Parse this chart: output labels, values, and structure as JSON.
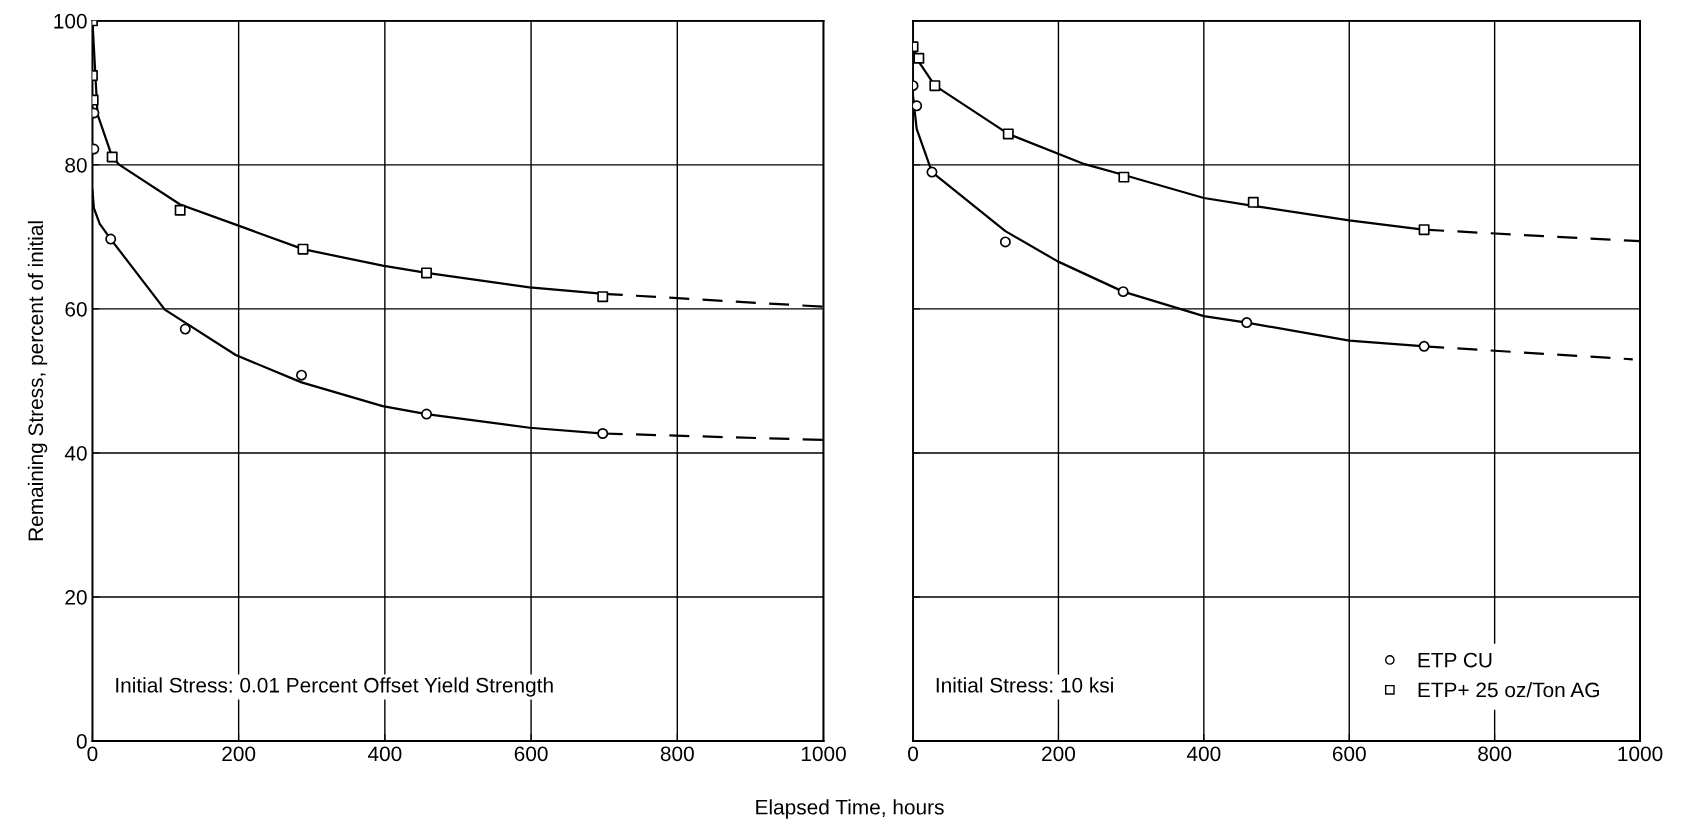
{
  "chart_data": [
    {
      "type": "scatter",
      "ylabel": "Remaining Stress, percent of initial",
      "xlabel": "Elapsed Time, hours",
      "xlim": [
        0,
        1000
      ],
      "ylim": [
        0,
        100
      ],
      "xticks": [
        0,
        200,
        400,
        600,
        800,
        1000
      ],
      "yticks": [
        0,
        20,
        40,
        60,
        80,
        100
      ],
      "grid": true,
      "annotations": [
        "Initial Stress: 0.01 Percent Offset Yield Strength"
      ],
      "series": [
        {
          "type": "line",
          "color": "#000000",
          "line_style": "solid",
          "marker": "none",
          "x": [
            0,
            7,
            27,
            37,
            120,
            196,
            288,
            397,
            457,
            598,
            698
          ],
          "values": [
            100,
            87,
            81.1,
            80,
            74.5,
            71.7,
            68.3,
            66,
            65,
            63,
            62.1
          ]
        },
        {
          "type": "line",
          "color": "#000000",
          "line_style": "dashed",
          "marker": "none",
          "x": [
            698,
            1000
          ],
          "values": [
            62.1,
            60.3
          ]
        },
        {
          "type": "line",
          "color": "#000000",
          "line_style": "solid",
          "marker": "none",
          "x": [
            0,
            2,
            10,
            25,
            99,
            196,
            286,
            397,
            457,
            598,
            698
          ],
          "values": [
            76.5,
            74,
            71.8,
            69.7,
            59.9,
            53.6,
            49.8,
            46.5,
            45.4,
            43.5,
            42.7
          ]
        },
        {
          "type": "line",
          "color": "#000000",
          "line_style": "dashed",
          "marker": "none",
          "x": [
            698,
            1000
          ],
          "values": [
            42.7,
            41.8
          ]
        },
        {
          "color": "#000000",
          "marker": "square",
          "x": [
            0,
            0,
            1,
            27,
            120,
            288,
            457,
            698
          ],
          "values": [
            100,
            92.4,
            89,
            81.1,
            73.7,
            68.3,
            65,
            61.7
          ]
        },
        {
          "color": "#000000",
          "marker": "circle",
          "x": [
            2,
            2,
            25,
            127,
            286,
            457,
            698
          ],
          "values": [
            87.2,
            82.2,
            69.7,
            57.2,
            50.8,
            45.4,
            42.7
          ]
        }
      ]
    },
    {
      "type": "scatter",
      "xlim": [
        0,
        1000
      ],
      "ylim": [
        0,
        100
      ],
      "xticks": [
        0,
        200,
        400,
        600,
        800,
        1000
      ],
      "yticks": [
        0,
        20,
        40,
        60,
        80,
        100
      ],
      "tick_labels": "x",
      "grid": true,
      "legend": "bottom right",
      "annotations": [
        "Initial Stress: 10 ksi"
      ],
      "series": [
        {
          "type": "line",
          "color": "#000000",
          "line_style": "solid",
          "marker": "none",
          "x": [
            0,
            8,
            30,
            131,
            236,
            290,
            400,
            468,
            600,
            703
          ],
          "values": [
            96.4,
            94.3,
            91,
            84.3,
            80.1,
            78.6,
            75.4,
            74.3,
            72.3,
            71
          ]
        },
        {
          "type": "line",
          "color": "#000000",
          "line_style": "dashed",
          "marker": "none",
          "x": [
            703,
            1000
          ],
          "values": [
            71,
            69.4
          ]
        },
        {
          "type": "line",
          "color": "#000000",
          "line_style": "solid",
          "marker": "none",
          "x": [
            0,
            5,
            26,
            127,
            199,
            289,
            400,
            459,
            600,
            703
          ],
          "values": [
            89.5,
            85,
            79,
            70.8,
            66.6,
            62.4,
            59,
            58.1,
            55.6,
            54.8
          ]
        },
        {
          "type": "line",
          "color": "#000000",
          "line_style": "dashed",
          "marker": "none",
          "x": [
            703,
            990
          ],
          "values": [
            54.8,
            53
          ]
        },
        {
          "name": "ETP CU",
          "color": "#000000",
          "marker": "circle",
          "x": [
            0,
            5,
            26,
            127,
            289,
            459,
            703
          ],
          "values": [
            91,
            88.2,
            79,
            69.3,
            62.4,
            58.1,
            54.8
          ]
        },
        {
          "name": "ETP+ 25 oz/Ton AG",
          "color": "#000000",
          "marker": "square",
          "x": [
            0,
            8,
            30,
            131,
            290,
            468,
            703
          ],
          "values": [
            96.4,
            94.8,
            91,
            84.3,
            78.3,
            74.8,
            71
          ]
        }
      ]
    }
  ]
}
